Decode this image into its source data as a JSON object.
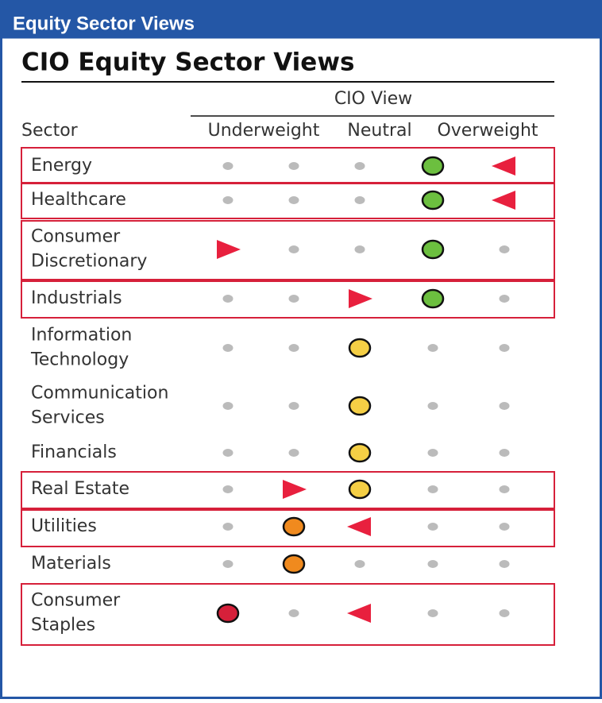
{
  "header": {
    "title": "Equity Sector Views"
  },
  "panel": {
    "title": "CIO Equity Sector Views",
    "group_label": "CIO View",
    "sector_label": "Sector",
    "scale_labels": [
      "Underweight",
      "Neutral",
      "Overweight"
    ],
    "rows": [
      {
        "lines": [
          "Energy"
        ],
        "view": 3,
        "view_color": "#6cbf3f",
        "change": {
          "direction": "downgrade",
          "column": 4
        },
        "highlighted": true
      },
      {
        "lines": [
          "Healthcare"
        ],
        "view": 3,
        "view_color": "#6cbf3f",
        "change": {
          "direction": "downgrade",
          "column": 4
        },
        "highlighted": true
      },
      {
        "lines": [
          "Consumer",
          "Discretionary"
        ],
        "view": 3,
        "view_color": "#6cbf3f",
        "change": {
          "direction": "upgrade",
          "column": 0
        },
        "highlighted": true
      },
      {
        "lines": [
          "Industrials"
        ],
        "view": 3,
        "view_color": "#6cbf3f",
        "change": {
          "direction": "upgrade",
          "column": 2
        },
        "highlighted": true
      },
      {
        "lines": [
          "Information",
          "Technology"
        ],
        "view": 2,
        "view_color": "#f5cf45",
        "highlighted": false
      },
      {
        "lines": [
          "Communication",
          "Services"
        ],
        "view": 2,
        "view_color": "#f5cf45",
        "highlighted": false
      },
      {
        "lines": [
          "Financials"
        ],
        "view": 2,
        "view_color": "#f5cf45",
        "highlighted": false
      },
      {
        "lines": [
          "Real Estate"
        ],
        "view": 2,
        "view_color": "#f5cf45",
        "change": {
          "direction": "upgrade",
          "column": 1
        },
        "highlighted": true
      },
      {
        "lines": [
          "Utilities"
        ],
        "view": 1,
        "view_color": "#f08a1e",
        "change": {
          "direction": "downgrade",
          "column": 2
        },
        "highlighted": true
      },
      {
        "lines": [
          "Materials"
        ],
        "view": 1,
        "view_color": "#f08a1e",
        "highlighted": false
      },
      {
        "lines": [
          "Consumer",
          "Staples"
        ],
        "view": 0,
        "view_color": "#d6203a",
        "change": {
          "direction": "downgrade",
          "column": 2
        },
        "highlighted": true
      }
    ]
  }
}
